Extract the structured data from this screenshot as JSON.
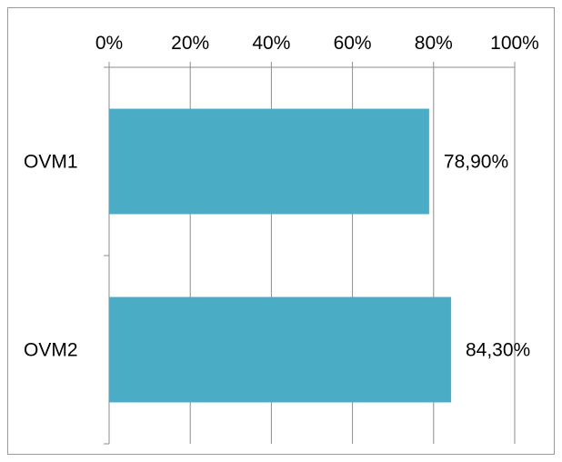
{
  "chart_data": {
    "type": "bar",
    "orientation": "horizontal",
    "categories": [
      "OVM1",
      "OVM2"
    ],
    "values": [
      78.9,
      84.3
    ],
    "data_labels": [
      "78,90%",
      "84,30%"
    ],
    "xlim": [
      0,
      100
    ],
    "x_ticks": [
      0,
      20,
      40,
      60,
      80,
      100
    ],
    "x_tick_labels": [
      "0%",
      "20%",
      "40%",
      "60%",
      "80%",
      "100%"
    ],
    "x_axis_position": "top",
    "grid": true,
    "legend": "none",
    "title": "",
    "xlabel": "",
    "ylabel": "",
    "colors": {
      "bar": "#4BACC6",
      "grid": "#8c8c8c",
      "axis": "#8c8c8c",
      "frame": "#9a9a9a"
    }
  }
}
